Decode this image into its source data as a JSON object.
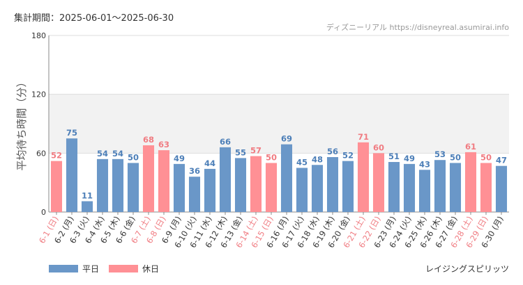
{
  "header": {
    "period": "集計期間：2025-06-01～2025-06-30",
    "source": "ディズニーリアル https://disneyreal.asumirai.info"
  },
  "legend": {
    "weekday_label": "平日",
    "holiday_label": "休日"
  },
  "attraction_name": "レイジングスピリッツ",
  "colors": {
    "weekday": "#6a97c8",
    "holiday": "#ff9095",
    "weekday_text": "#4d7fb8",
    "holiday_text": "#f07c82",
    "band": "#f2f2f2",
    "grid": "#dddddd"
  },
  "chart_data": {
    "type": "bar",
    "ylabel": "平均待ち時間（分）",
    "ylim": [
      0,
      180
    ],
    "yticks": [
      0,
      60,
      120,
      180
    ],
    "shaded_band": [
      60,
      120
    ],
    "categories": [
      "6-1 (日)",
      "6-2 (月)",
      "6-3 (火)",
      "6-4 (水)",
      "6-5 (木)",
      "6-6 (金)",
      "6-7 (土)",
      "6-8 (日)",
      "6-9 (月)",
      "6-10 (火)",
      "6-11 (水)",
      "6-12 (木)",
      "6-13 (金)",
      "6-14 (土)",
      "6-15 (日)",
      "6-16 (月)",
      "6-17 (火)",
      "6-18 (水)",
      "6-19 (木)",
      "6-20 (金)",
      "6-21 (土)",
      "6-22 (日)",
      "6-23 (月)",
      "6-24 (火)",
      "6-25 (水)",
      "6-26 (木)",
      "6-27 (金)",
      "6-28 (土)",
      "6-29 (日)",
      "6-30 (月)"
    ],
    "values": [
      52,
      75,
      11,
      54,
      54,
      50,
      68,
      63,
      49,
      36,
      44,
      66,
      55,
      57,
      50,
      69,
      45,
      48,
      56,
      52,
      71,
      60,
      51,
      49,
      43,
      53,
      50,
      61,
      50,
      47
    ],
    "day_type": [
      "holiday",
      "weekday",
      "weekday",
      "weekday",
      "weekday",
      "weekday",
      "holiday",
      "holiday",
      "weekday",
      "weekday",
      "weekday",
      "weekday",
      "weekday",
      "holiday",
      "holiday",
      "weekday",
      "weekday",
      "weekday",
      "weekday",
      "weekday",
      "holiday",
      "holiday",
      "weekday",
      "weekday",
      "weekday",
      "weekday",
      "weekday",
      "holiday",
      "holiday",
      "weekday"
    ],
    "legend_position": "bottom-left"
  }
}
